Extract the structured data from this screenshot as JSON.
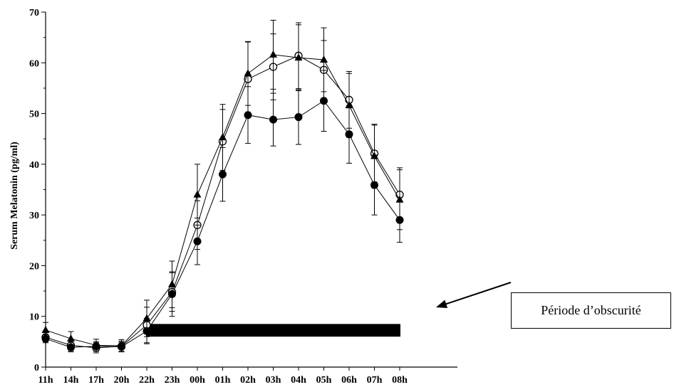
{
  "chart_data": {
    "type": "line",
    "title": "",
    "xlabel": "",
    "ylabel": "Serum Melatonin (pg/ml)",
    "ylim": [
      0,
      70
    ],
    "yticks": [
      0,
      10,
      20,
      30,
      40,
      50,
      60,
      70
    ],
    "categories": [
      "11h",
      "14h",
      "17h",
      "20h",
      "22h",
      "23h",
      "00h",
      "01h",
      "02h",
      "03h",
      "04h",
      "05h",
      "06h",
      "07h",
      "08h"
    ],
    "series": [
      {
        "marker": "open-circle",
        "values": [
          5.9,
          4.3,
          3.8,
          4.1,
          8.3,
          14.8,
          28.0,
          44.5,
          56.8,
          59.2,
          61.4,
          58.6,
          52.7,
          42.1,
          34.0
        ],
        "errors": [
          0.9,
          1.1,
          1.0,
          1.0,
          3.5,
          3.8,
          4.8,
          6.3,
          7.3,
          6.5,
          6.5,
          5.8,
          5.6,
          5.6,
          5.3
        ]
      },
      {
        "marker": "filled-triangle",
        "values": [
          7.3,
          5.6,
          4.3,
          4.2,
          9.6,
          16.3,
          34.0,
          45.3,
          57.9,
          61.6,
          61.0,
          60.6,
          51.6,
          41.6,
          33.0
        ],
        "errors": [
          1.5,
          1.4,
          1.2,
          1.2,
          3.6,
          4.6,
          6.0,
          6.5,
          6.3,
          6.8,
          6.5,
          6.3,
          6.3,
          6.3,
          5.9
        ]
      },
      {
        "marker": "filled-circle",
        "values": [
          5.6,
          3.9,
          4.1,
          4.0,
          7.1,
          14.4,
          24.8,
          38.0,
          49.7,
          48.8,
          49.3,
          52.5,
          45.9,
          35.9,
          29.0
        ],
        "errors": [
          0.8,
          0.9,
          0.9,
          0.9,
          2.5,
          4.4,
          4.6,
          5.3,
          5.6,
          5.2,
          5.4,
          6.0,
          5.7,
          5.9,
          4.4
        ]
      }
    ],
    "dark_period": {
      "from": "22h",
      "to": "08h",
      "level": [
        6.0,
        8.5
      ]
    },
    "annotation": "Période d’obscurité",
    "colors": {
      "line": "#000000",
      "bar": "#000000"
    }
  }
}
